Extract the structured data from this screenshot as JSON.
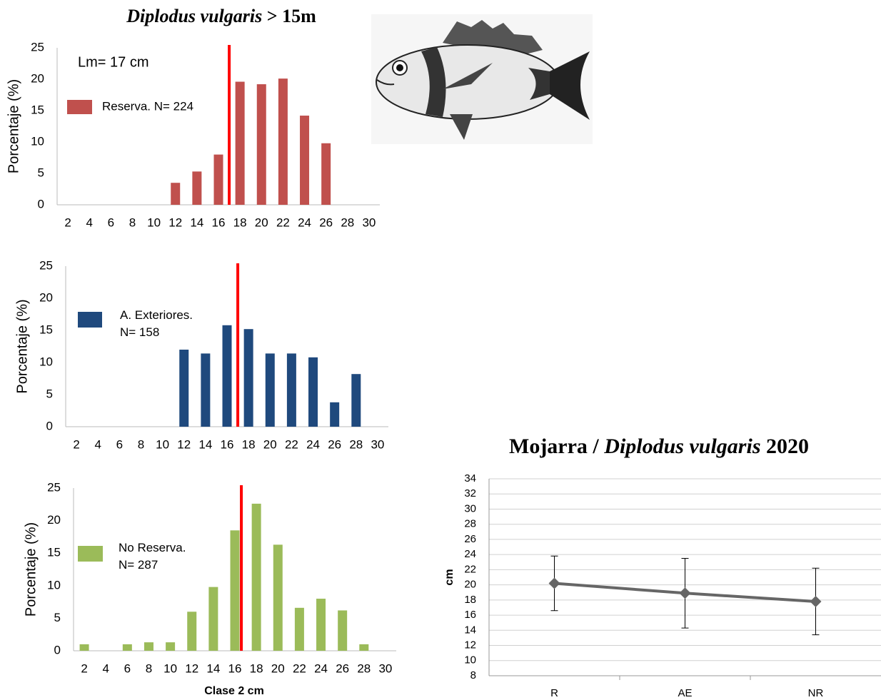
{
  "chart_data": [
    {
      "type": "bar",
      "title": [
        "Diplodus vulgaris",
        "> 15m"
      ],
      "annotation": "Lm= 17 cm",
      "x": [
        2,
        4,
        6,
        8,
        10,
        12,
        14,
        16,
        18,
        20,
        22,
        24,
        26,
        28,
        30
      ],
      "series": [
        {
          "name": "Reserva.  N= 224",
          "color": "#c0504d",
          "values": [
            0,
            0,
            0,
            0,
            0,
            3.5,
            5.3,
            8,
            19.6,
            19.2,
            20.1,
            14.2,
            9.8,
            0,
            0
          ]
        }
      ],
      "xlim": [
        1,
        31
      ],
      "xticks": [
        2,
        4,
        6,
        8,
        10,
        12,
        14,
        16,
        18,
        20,
        22,
        24,
        26,
        28,
        30
      ],
      "ylim": [
        0,
        25
      ],
      "yticks": [
        0,
        5,
        10,
        15,
        20,
        25
      ],
      "ylabel": "Porcentaje (%)",
      "reference_line": {
        "x": 17,
        "color": "#ff0000"
      }
    },
    {
      "type": "bar",
      "x": [
        2,
        4,
        6,
        8,
        10,
        12,
        14,
        16,
        18,
        20,
        22,
        24,
        26,
        28,
        30
      ],
      "series": [
        {
          "name": "A. Exteriores.\nN= 158",
          "color": "#1f497d",
          "values": [
            0,
            0,
            0,
            0,
            0,
            12,
            11.4,
            15.8,
            15.2,
            11.4,
            11.4,
            10.8,
            3.8,
            8.2,
            0
          ]
        }
      ],
      "xlim": [
        1,
        31
      ],
      "xticks": [
        2,
        4,
        6,
        8,
        10,
        12,
        14,
        16,
        18,
        20,
        22,
        24,
        26,
        28,
        30
      ],
      "ylim": [
        0,
        25
      ],
      "yticks": [
        0,
        5,
        10,
        15,
        20,
        25
      ],
      "ylabel": "Porcentaje (%)",
      "reference_line": {
        "x": 17,
        "color": "#ff0000"
      }
    },
    {
      "type": "bar",
      "x": [
        2,
        4,
        6,
        8,
        10,
        12,
        14,
        16,
        18,
        20,
        22,
        24,
        26,
        28,
        30
      ],
      "series": [
        {
          "name": "No Reserva.\nN= 287",
          "color": "#9bbb59",
          "values": [
            1,
            0,
            1,
            1.3,
            1.3,
            6,
            9.8,
            18.5,
            22.6,
            16.3,
            6.6,
            8,
            6.2,
            1,
            0
          ]
        }
      ],
      "xlim": [
        1,
        31
      ],
      "xticks": [
        2,
        4,
        6,
        8,
        10,
        12,
        14,
        16,
        18,
        20,
        22,
        24,
        26,
        28,
        30
      ],
      "ylim": [
        0,
        25
      ],
      "yticks": [
        0,
        5,
        10,
        15,
        20,
        25
      ],
      "ylabel": "Porcentaje (%)",
      "xlabel": "Clase 2 cm",
      "reference_line": {
        "x": 16.6,
        "color": "#ff0000"
      }
    },
    {
      "type": "line",
      "title": [
        "Mojarra /",
        "Diplodus vulgaris",
        "2020"
      ],
      "categories": [
        "R",
        "AE",
        "NR"
      ],
      "series": [
        {
          "color": "#666666",
          "values": [
            20.2,
            18.9,
            17.8
          ],
          "errors": [
            3.6,
            4.6,
            4.4
          ]
        }
      ],
      "ylim": [
        8,
        34
      ],
      "yticks": [
        8,
        10,
        12,
        14,
        16,
        18,
        20,
        22,
        24,
        26,
        28,
        30,
        32,
        34
      ],
      "ylabel": "cm",
      "grid": true
    }
  ]
}
